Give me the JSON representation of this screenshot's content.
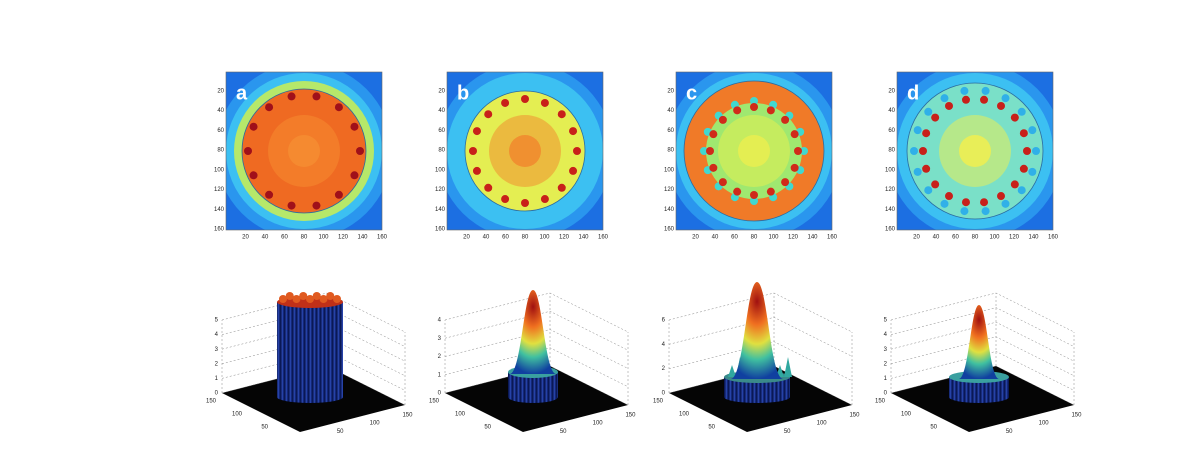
{
  "panels": [
    {
      "label": "a",
      "heatmap": {
        "xticks": [
          20,
          40,
          60,
          80,
          100,
          120,
          140,
          160
        ],
        "yticks": [
          20,
          40,
          60,
          80,
          100,
          120,
          140,
          160
        ]
      },
      "surface": {
        "zticks": [
          0,
          1,
          2,
          3,
          4,
          5
        ],
        "yticks": [
          150,
          100,
          50
        ],
        "xticks": [
          50,
          100,
          150
        ]
      }
    },
    {
      "label": "b",
      "heatmap": {
        "xticks": [
          20,
          40,
          60,
          80,
          100,
          120,
          140,
          160
        ],
        "yticks": [
          20,
          40,
          60,
          80,
          100,
          120,
          140,
          160
        ]
      },
      "surface": {
        "zticks": [
          0,
          1,
          2,
          3,
          4
        ],
        "yticks": [
          150,
          100,
          50
        ],
        "xticks": [
          50,
          100,
          150
        ]
      }
    },
    {
      "label": "c",
      "heatmap": {
        "xticks": [
          20,
          40,
          60,
          80,
          100,
          120,
          140,
          160
        ],
        "yticks": [
          20,
          40,
          60,
          80,
          100,
          120,
          140,
          160
        ]
      },
      "surface": {
        "zticks": [
          0,
          2,
          4,
          6
        ],
        "yticks": [
          150,
          100,
          50
        ],
        "xticks": [
          50,
          100,
          150
        ]
      }
    },
    {
      "label": "d",
      "heatmap": {
        "xticks": [
          20,
          40,
          60,
          80,
          100,
          120,
          140,
          160
        ],
        "yticks": [
          20,
          40,
          60,
          80,
          100,
          120,
          140,
          160
        ]
      },
      "surface": {
        "zticks": [
          0,
          1,
          2,
          3,
          4,
          5
        ],
        "yticks": [
          150,
          100,
          50
        ],
        "xticks": [
          50,
          100,
          150
        ]
      }
    }
  ]
}
